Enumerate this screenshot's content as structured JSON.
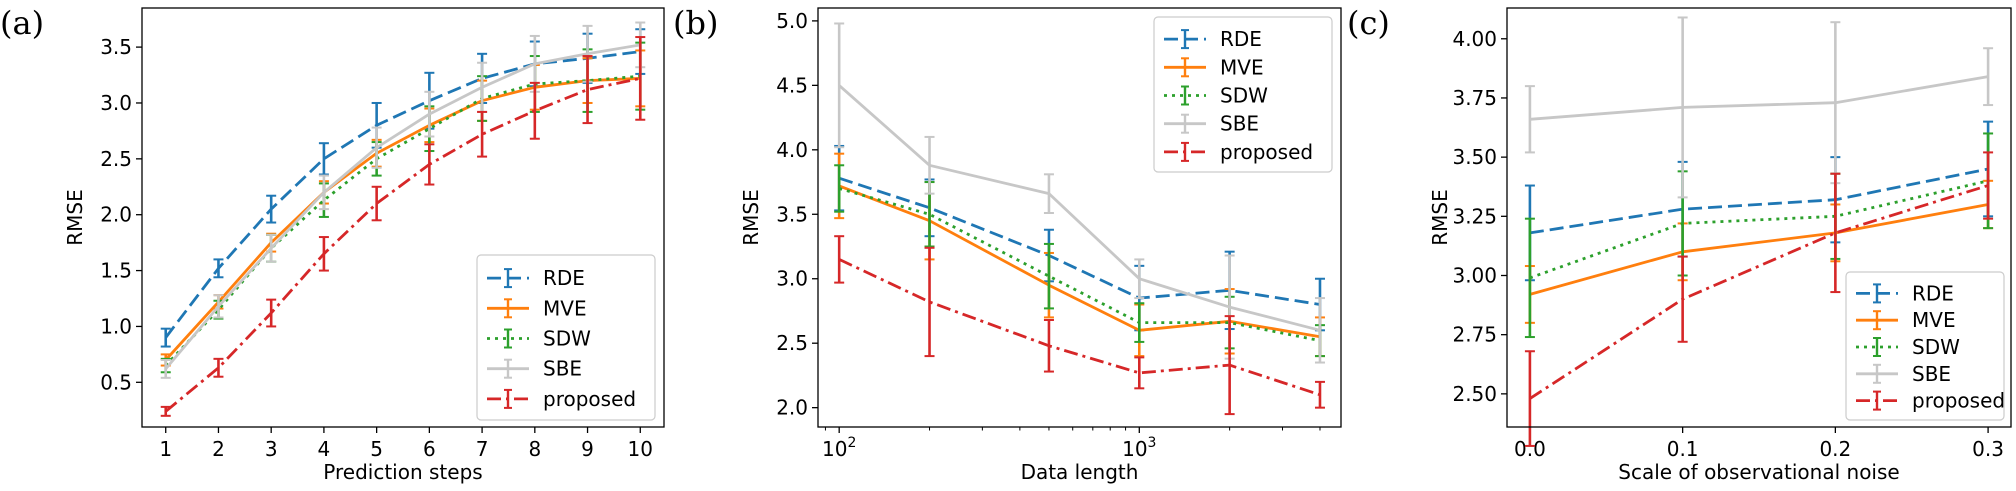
{
  "chart_data": [
    {
      "type": "line",
      "panel_label": "(a)",
      "xlabel": "Prediction steps",
      "ylabel": "RMSE",
      "xscale": "linear",
      "xlim": [
        0.55,
        10.45
      ],
      "ylim": [
        0.1,
        3.85
      ],
      "xticks": [
        1,
        2,
        3,
        4,
        5,
        6,
        7,
        8,
        9,
        10
      ],
      "xtick_labels": [
        "1",
        "2",
        "3",
        "4",
        "5",
        "6",
        "7",
        "8",
        "9",
        "10"
      ],
      "yticks": [
        0.5,
        1.0,
        1.5,
        2.0,
        2.5,
        3.0,
        3.5
      ],
      "ytick_labels": [
        "0.5",
        "1.0",
        "1.5",
        "2.0",
        "2.5",
        "3.0",
        "3.5"
      ],
      "legend_position": "lower-right",
      "x": [
        1,
        2,
        3,
        4,
        5,
        6,
        7,
        8,
        9,
        10
      ],
      "series": [
        {
          "name": "RDE",
          "color": "#1f77b4",
          "dash": "dashed",
          "values": [
            0.9,
            1.52,
            2.05,
            2.5,
            2.8,
            3.02,
            3.22,
            3.35,
            3.4,
            3.46
          ],
          "errors": [
            0.08,
            0.08,
            0.12,
            0.14,
            0.2,
            0.25,
            0.22,
            0.2,
            0.22,
            0.2
          ]
        },
        {
          "name": "MVE",
          "color": "#ff7f0e",
          "dash": "solid",
          "values": [
            0.7,
            1.22,
            1.75,
            2.2,
            2.55,
            2.8,
            3.02,
            3.14,
            3.2,
            3.22
          ],
          "errors": [
            0.05,
            0.06,
            0.08,
            0.1,
            0.12,
            0.15,
            0.18,
            0.2,
            0.2,
            0.25
          ]
        },
        {
          "name": "SDW",
          "color": "#2ca02c",
          "dash": "dotted",
          "values": [
            0.65,
            1.15,
            1.7,
            2.13,
            2.5,
            2.77,
            3.04,
            3.17,
            3.2,
            3.24
          ],
          "errors": [
            0.06,
            0.08,
            0.12,
            0.15,
            0.15,
            0.2,
            0.2,
            0.25,
            0.28,
            0.3
          ]
        },
        {
          "name": "SBE",
          "color": "#c7c7c7",
          "dash": "solid",
          "values": [
            0.62,
            1.18,
            1.7,
            2.2,
            2.6,
            2.9,
            3.14,
            3.35,
            3.44,
            3.52
          ],
          "errors": [
            0.08,
            0.1,
            0.12,
            0.15,
            0.18,
            0.2,
            0.22,
            0.25,
            0.25,
            0.2
          ]
        },
        {
          "name": "proposed",
          "color": "#d62728",
          "dash": "dashdot",
          "values": [
            0.24,
            0.63,
            1.12,
            1.65,
            2.1,
            2.45,
            2.72,
            2.93,
            3.12,
            3.22
          ],
          "errors": [
            0.04,
            0.08,
            0.12,
            0.15,
            0.15,
            0.18,
            0.2,
            0.25,
            0.3,
            0.37
          ]
        }
      ]
    },
    {
      "type": "line",
      "panel_label": "(b)",
      "xlabel": "Data length",
      "ylabel": "RMSE",
      "xscale": "log",
      "xlim": [
        85,
        4700
      ],
      "ylim": [
        1.85,
        5.1
      ],
      "xticks": [
        100,
        1000
      ],
      "xtick_labels": [
        "10",
        "10"
      ],
      "xtick_superscripts": [
        "2",
        "3"
      ],
      "yticks": [
        2.0,
        2.5,
        3.0,
        3.5,
        4.0,
        4.5,
        5.0
      ],
      "ytick_labels": [
        "2.0",
        "2.5",
        "3.0",
        "3.5",
        "4.0",
        "4.5",
        "5.0"
      ],
      "legend_position": "top-right",
      "x": [
        100,
        200,
        500,
        1000,
        2000,
        4000
      ],
      "series": [
        {
          "name": "RDE",
          "color": "#1f77b4",
          "dash": "dashed",
          "values": [
            3.78,
            3.55,
            3.18,
            2.85,
            2.91,
            2.8
          ],
          "errors": [
            0.25,
            0.22,
            0.2,
            0.25,
            0.3,
            0.2
          ]
        },
        {
          "name": "MVE",
          "color": "#ff7f0e",
          "dash": "solid",
          "values": [
            3.72,
            3.45,
            2.95,
            2.6,
            2.67,
            2.55
          ],
          "errors": [
            0.25,
            0.3,
            0.25,
            0.2,
            0.25,
            0.15
          ]
        },
        {
          "name": "SDW",
          "color": "#2ca02c",
          "dash": "dotted",
          "values": [
            3.7,
            3.5,
            3.02,
            2.66,
            2.66,
            2.52
          ],
          "errors": [
            0.18,
            0.25,
            0.25,
            0.15,
            0.2,
            0.12
          ]
        },
        {
          "name": "SBE",
          "color": "#c7c7c7",
          "dash": "solid",
          "values": [
            4.5,
            3.88,
            3.66,
            3.0,
            2.78,
            2.6
          ],
          "errors": [
            0.48,
            0.22,
            0.15,
            0.15,
            0.4,
            0.25
          ]
        },
        {
          "name": "proposed",
          "color": "#d62728",
          "dash": "dashdot",
          "values": [
            3.15,
            2.82,
            2.48,
            2.27,
            2.33,
            2.1
          ],
          "errors": [
            0.18,
            0.42,
            0.2,
            0.12,
            0.38,
            0.1
          ]
        }
      ]
    },
    {
      "type": "line",
      "panel_label": "(c)",
      "xlabel": "Scale of observational noise",
      "ylabel": "RMSE",
      "xscale": "linear",
      "xlim": [
        -0.015,
        0.315
      ],
      "ylim": [
        2.36,
        4.13
      ],
      "xticks": [
        0.0,
        0.1,
        0.2,
        0.3
      ],
      "xtick_labels": [
        "0.0",
        "0.1",
        "0.2",
        "0.3"
      ],
      "yticks": [
        2.5,
        2.75,
        3.0,
        3.25,
        3.5,
        3.75,
        4.0
      ],
      "ytick_labels": [
        "2.50",
        "2.75",
        "3.00",
        "3.25",
        "3.50",
        "3.75",
        "4.00"
      ],
      "legend_position": "lower-right",
      "x": [
        0.0,
        0.1,
        0.2,
        0.3
      ],
      "series": [
        {
          "name": "RDE",
          "color": "#1f77b4",
          "dash": "dashed",
          "values": [
            3.18,
            3.28,
            3.32,
            3.45
          ],
          "errors": [
            0.2,
            0.2,
            0.18,
            0.2
          ]
        },
        {
          "name": "MVE",
          "color": "#ff7f0e",
          "dash": "solid",
          "values": [
            2.92,
            3.1,
            3.18,
            3.3
          ],
          "errors": [
            0.12,
            0.12,
            0.12,
            0.1
          ]
        },
        {
          "name": "SDW",
          "color": "#2ca02c",
          "dash": "dotted",
          "values": [
            2.99,
            3.22,
            3.25,
            3.4
          ],
          "errors": [
            0.25,
            0.22,
            0.18,
            0.2
          ]
        },
        {
          "name": "SBE",
          "color": "#c7c7c7",
          "dash": "solid",
          "values": [
            3.66,
            3.71,
            3.73,
            3.84
          ],
          "errors": [
            0.14,
            0.38,
            0.34,
            0.12
          ]
        },
        {
          "name": "proposed",
          "color": "#d62728",
          "dash": "dashdot",
          "values": [
            2.48,
            2.9,
            3.18,
            3.38
          ],
          "errors": [
            0.2,
            0.18,
            0.25,
            0.14
          ]
        }
      ]
    }
  ]
}
